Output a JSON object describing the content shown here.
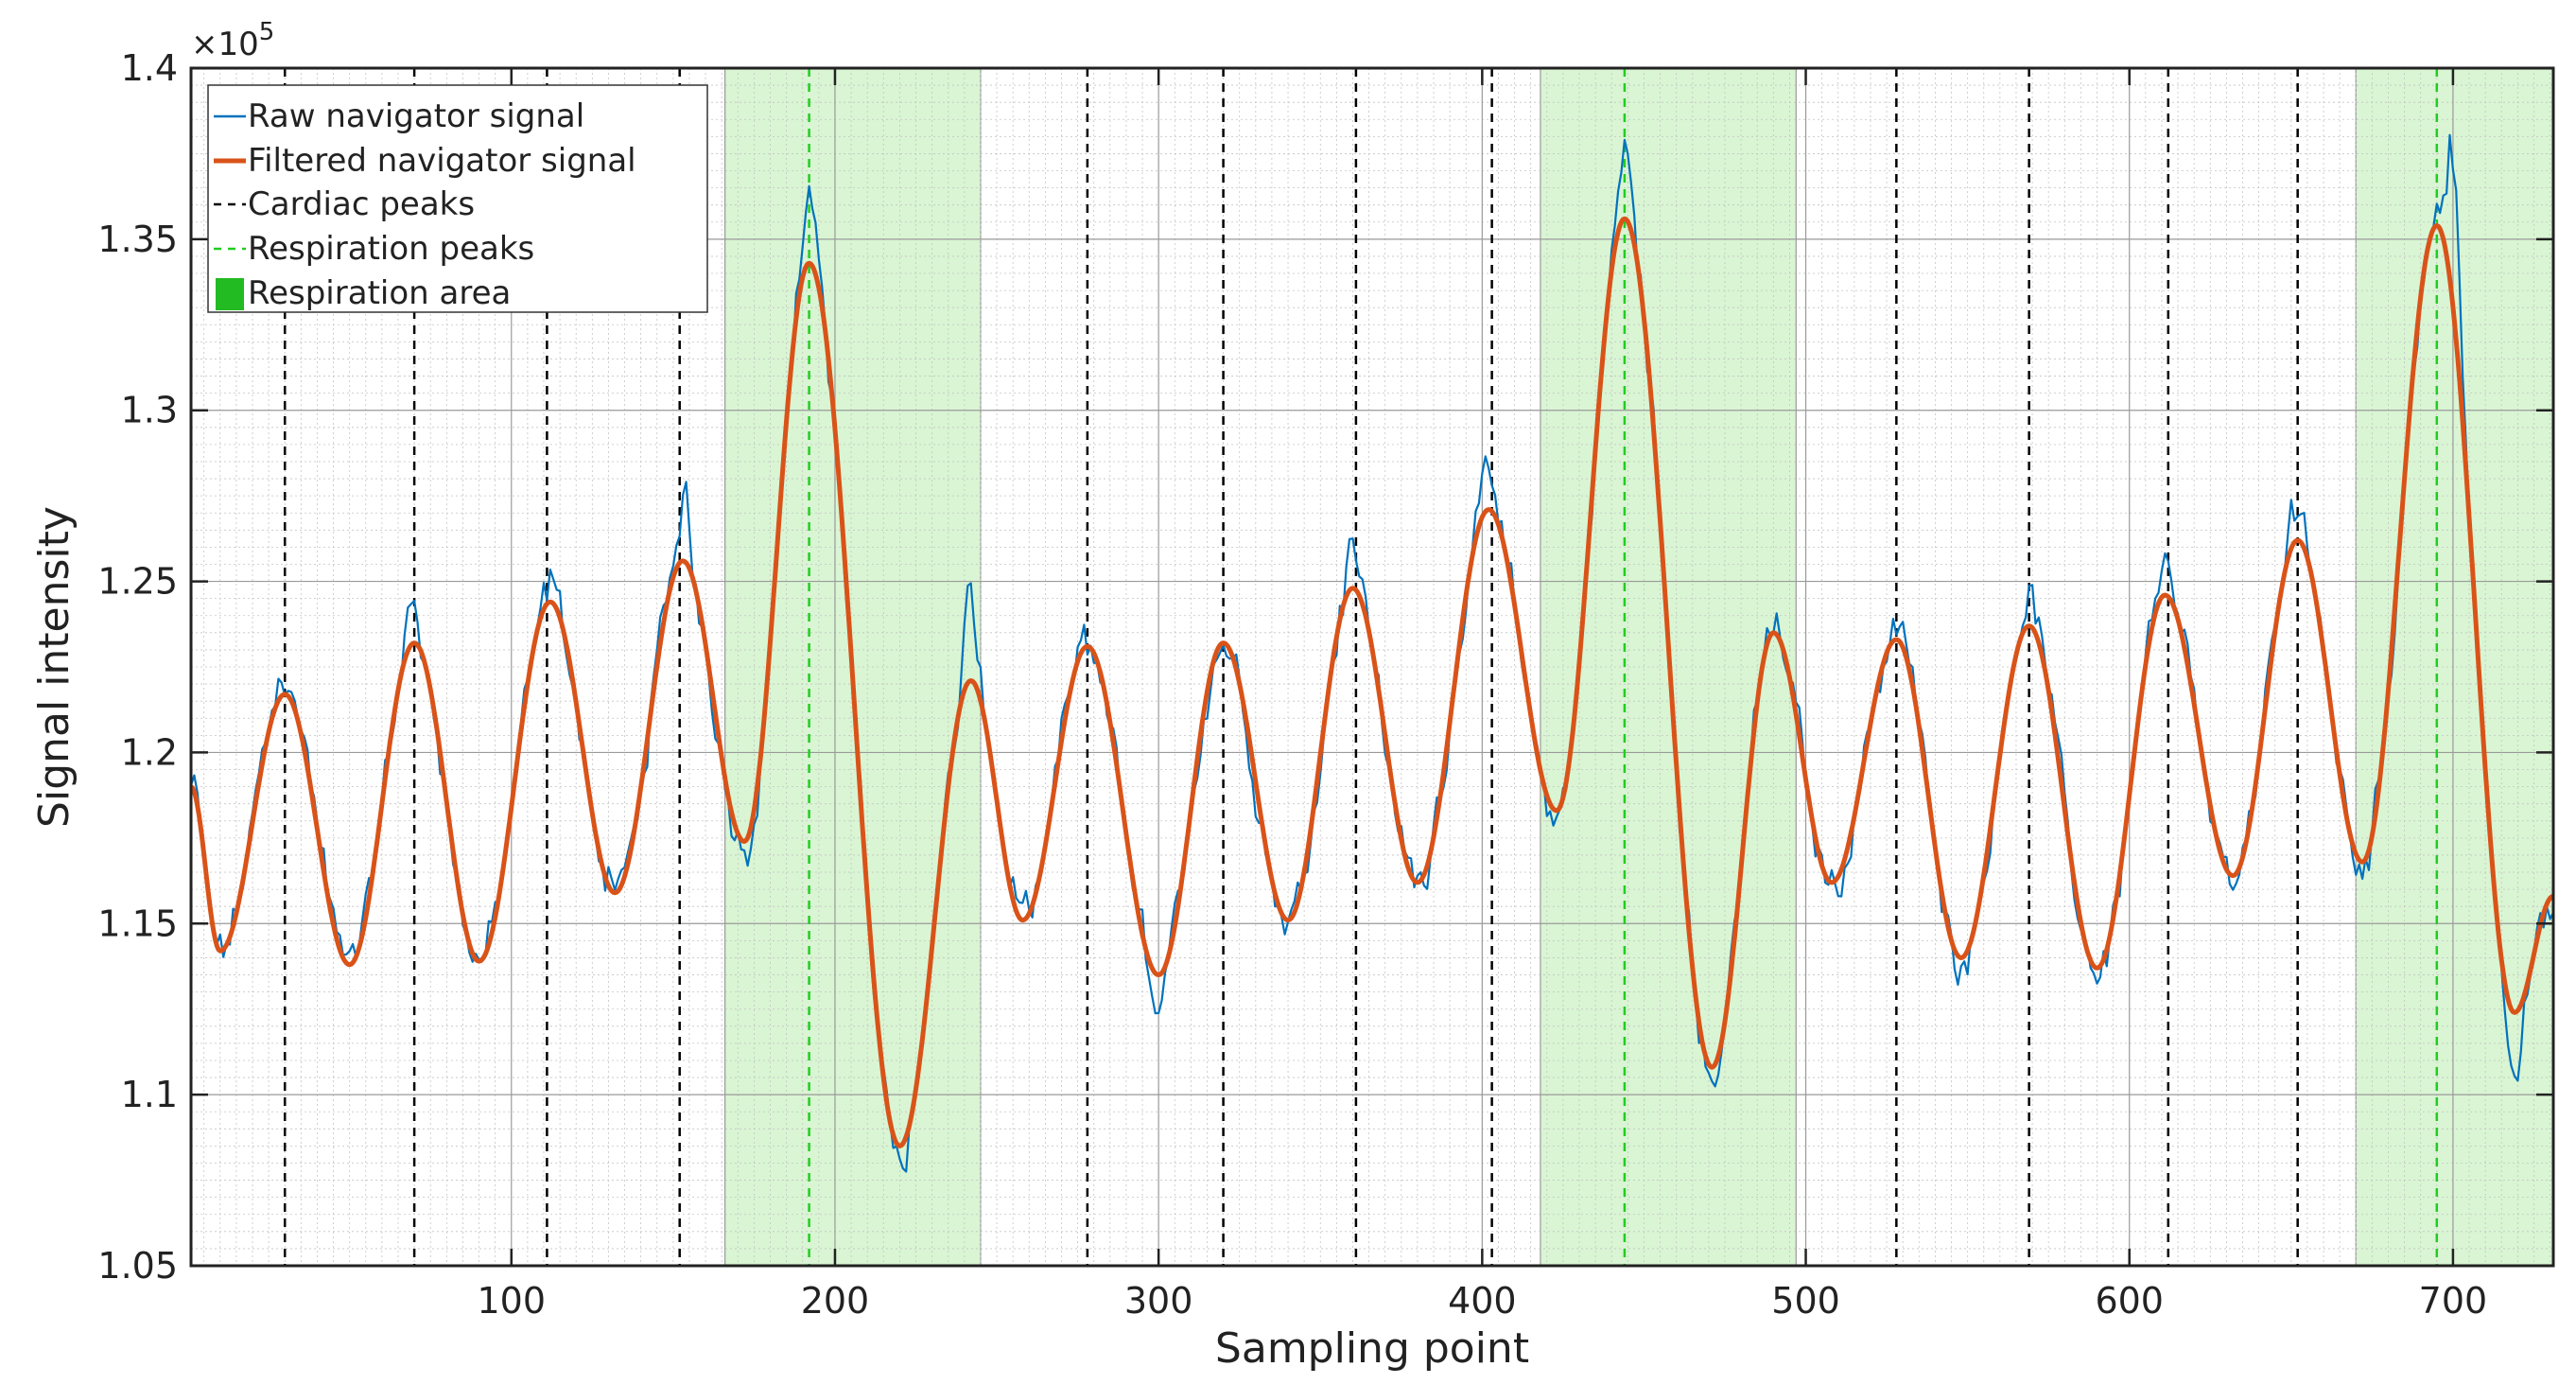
{
  "chart_data": {
    "type": "line",
    "title": "",
    "xlabel": "Sampling point",
    "ylabel": "Signal intensity",
    "y_multiplier_label": "×10",
    "y_multiplier_exponent": "5",
    "xlim": [
      1,
      731
    ],
    "ylim": [
      1.05,
      1.4
    ],
    "x_ticks": [
      100,
      200,
      300,
      400,
      500,
      600,
      700
    ],
    "x_tick_labels": [
      "100",
      "200",
      "300",
      "400",
      "500",
      "600",
      "700"
    ],
    "y_ticks": [
      1.05,
      1.1,
      1.15,
      1.2,
      1.25,
      1.3,
      1.35,
      1.4
    ],
    "y_tick_labels": [
      "1.05",
      "1.1",
      "1.15",
      "1.2",
      "1.25",
      "1.3",
      "1.35",
      "1.4"
    ],
    "grid": true,
    "minor_grid": true,
    "legend_position": "top-left",
    "legend": [
      {
        "label": "Raw navigator signal",
        "kind": "line",
        "color": "#0072BD"
      },
      {
        "label": "Filtered navigator signal",
        "kind": "thick-line",
        "color": "#D95319"
      },
      {
        "label": "Cardiac peaks",
        "kind": "dashed",
        "color": "#000000"
      },
      {
        "label": "Respiration peaks",
        "kind": "dashed",
        "color": "#22cc22"
      },
      {
        "label": "Respiration area",
        "kind": "patch",
        "color": "#22bb22"
      }
    ],
    "filtered_extrema": [
      [
        1,
        1.19
      ],
      [
        10,
        1.142
      ],
      [
        30,
        1.217
      ],
      [
        50,
        1.138
      ],
      [
        70,
        1.232
      ],
      [
        90,
        1.139
      ],
      [
        112,
        1.244
      ],
      [
        132,
        1.159
      ],
      [
        153,
        1.256
      ],
      [
        172,
        1.174
      ],
      [
        192,
        1.343
      ],
      [
        220,
        1.085
      ],
      [
        242,
        1.221
      ],
      [
        258,
        1.151
      ],
      [
        278,
        1.231
      ],
      [
        300,
        1.135
      ],
      [
        320,
        1.232
      ],
      [
        340,
        1.151
      ],
      [
        360,
        1.248
      ],
      [
        380,
        1.162
      ],
      [
        402,
        1.271
      ],
      [
        423,
        1.183
      ],
      [
        444,
        1.356
      ],
      [
        471,
        1.108
      ],
      [
        490,
        1.235
      ],
      [
        508,
        1.162
      ],
      [
        528,
        1.233
      ],
      [
        548,
        1.14
      ],
      [
        569,
        1.237
      ],
      [
        590,
        1.137
      ],
      [
        611,
        1.246
      ],
      [
        632,
        1.164
      ],
      [
        652,
        1.262
      ],
      [
        672,
        1.168
      ],
      [
        695,
        1.354
      ],
      [
        719,
        1.124
      ],
      [
        731,
        1.158
      ]
    ],
    "raw_noise_amplitude": 0.006,
    "raw_spike_extrema": [
      [
        30,
        1.225
      ],
      [
        70,
        1.252
      ],
      [
        112,
        1.25
      ],
      [
        153,
        1.276
      ],
      [
        192,
        1.362
      ],
      [
        220,
        1.078
      ],
      [
        242,
        1.25
      ],
      [
        300,
        1.12
      ],
      [
        360,
        1.265
      ],
      [
        402,
        1.281
      ],
      [
        444,
        1.38
      ],
      [
        471,
        1.1
      ],
      [
        528,
        1.24
      ],
      [
        569,
        1.25
      ],
      [
        611,
        1.255
      ],
      [
        652,
        1.277
      ],
      [
        700,
        1.385
      ],
      [
        719,
        1.105
      ]
    ],
    "cardiac_peaks": [
      30,
      70,
      111,
      152,
      278,
      320,
      361,
      403,
      528,
      569,
      612,
      652
    ],
    "respiration_peaks": [
      192,
      444,
      695
    ],
    "respiration_areas": [
      [
        166,
        245
      ],
      [
        418,
        497
      ],
      [
        670,
        731
      ]
    ],
    "colors": {
      "raw": "#0072BD",
      "filtered": "#D95319",
      "cardiac": "#000000",
      "respiration": "#22cc22",
      "area_fill": "#d9f5d3"
    }
  }
}
